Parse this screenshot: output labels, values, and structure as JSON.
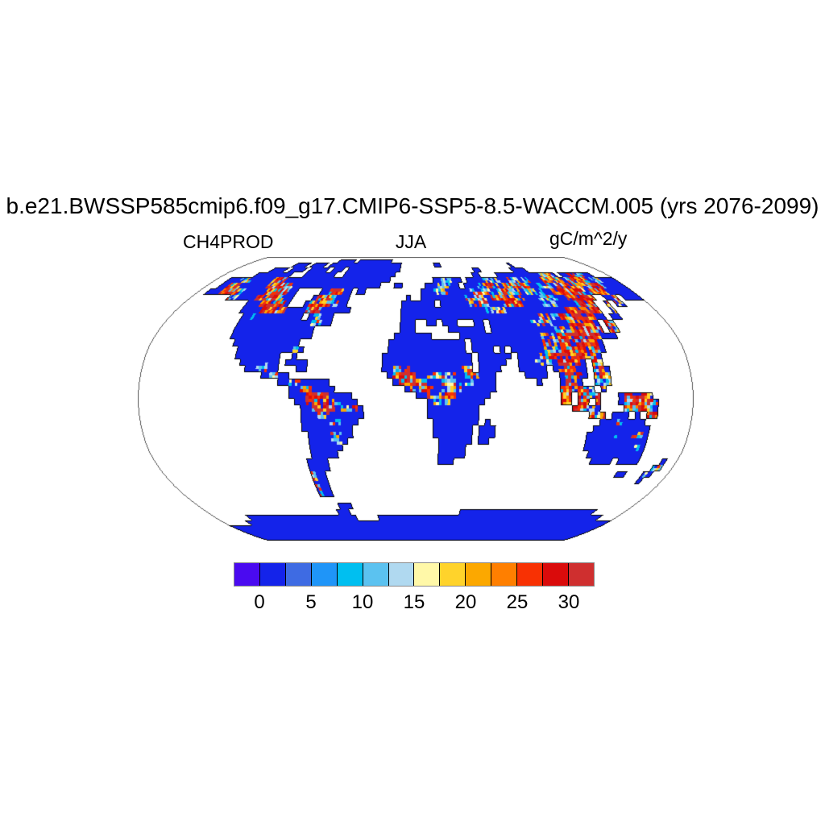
{
  "title": "b.e21.BWSSP585cmip6.f09_g17.CMIP6-SSP5-8.5-WACCM.005 (yrs 2076-2099)",
  "subtitle": {
    "left": "CH4PROD",
    "center": "JJA",
    "right": "gC/m^2/y"
  },
  "colors": {
    "background": "#ffffff",
    "ocean": "#ffffff",
    "land_base": "#1423EA",
    "coastline": "#000000",
    "map_outline": "#555555",
    "colorbar_border": "#8a8a8a",
    "text": "#000000"
  },
  "chart_data": {
    "type": "heatmap",
    "map_projection": "robinson",
    "variable": "CH4PROD",
    "season": "JJA",
    "units": "gC/m^2/y",
    "title": "b.e21.BWSSP585cmip6.f09_g17.CMIP6-SSP5-8.5-WACCM.005 (yrs 2076-2099)",
    "colorbar": {
      "colors": [
        "#4A0AF0",
        "#1423EA",
        "#3E6BE3",
        "#1F95F8",
        "#00BFF0",
        "#5BC2F0",
        "#B0D9F0",
        "#FFF8A8",
        "#FFD32B",
        "#FCA800",
        "#FF7F00",
        "#F83103",
        "#DA0B0B",
        "#CF2F2F"
      ],
      "cell_bounds": [
        -2.5,
        0,
        2.5,
        5,
        7.5,
        10,
        12.5,
        15,
        17.5,
        20,
        22.5,
        25,
        27.5,
        30,
        32.5
      ],
      "ticks": [
        {
          "label": "0",
          "boundary": 1
        },
        {
          "label": "5",
          "boundary": 3
        },
        {
          "label": "10",
          "boundary": 5
        },
        {
          "label": "15",
          "boundary": 7
        },
        {
          "label": "20",
          "boundary": 9
        },
        {
          "label": "25",
          "boundary": 11
        },
        {
          "label": "30",
          "boundary": 13
        }
      ]
    },
    "legend_note": "land cells: B = low production (solid blue), m = mild mixed hotspot, H = strong red/orange hotspot, . = water",
    "speckle_palettes": {
      "H": {
        "colors": [
          "#CF2F2F",
          "#DA0B0B",
          "#F83103",
          "#FF7F00",
          "#FCA800",
          "#FFD32B",
          "#00BFF0",
          "#5BC2F0",
          "#B0D9F0",
          "#1423EA"
        ],
        "cum": [
          0.24,
          0.44,
          0.56,
          0.63,
          0.7,
          0.77,
          0.83,
          0.88,
          0.92,
          1.0
        ]
      },
      "m": {
        "colors": [
          "#1423EA",
          "#00BFF0",
          "#5BC2F0",
          "#B0D9F0",
          "#FFF8A8",
          "#FFD32B",
          "#FCA800",
          "#F83103",
          "#CF2F2F"
        ],
        "cum": [
          0.32,
          0.47,
          0.62,
          0.72,
          0.78,
          0.84,
          0.89,
          0.95,
          1.0
        ]
      }
    },
    "grid": {
      "cols": 96,
      "rows": 48,
      "lon0": -180,
      "lat0": 90,
      "dlon": 3.75,
      "dlat": 3.75,
      "rows_data": [
        "96.",
        "25. 5B 1. 10B 55.",
        "14. 4B 1. 4B 1. 6B 14B 9. 2B 19. 1B 21.",
        "10. 4B 1. 4B 1. 5B 1. 3B 1. 14B 19. 2B 8. 4B 19.",
        "8. 9B 3. 8B 2. 13B 19. 2B 4. 11B 3H 1B 1. 2B 2H 2m 2B 4.",
        "3. 3B 3m 3B 2B 3H 14B 11B 10. 2B 3m 2B 1. 4B 4m 2B 5m 3B 5H 1B 5H 1B 2m 4B",
        "3. 2B 3H 4B 2B 4H 2m 13B 7B 3. 2B 5. 3B 3m 2B 1. 3B 2m 2H 1m 1B 6H 2B 3m 1B 7H 1m 3H 5B",
        "2. 3B 4H 1m 2B 3B 5H 2B 5. 2B 3H 2B 1. 2B 12. 3B 3m 2B 2B 1B 5m 1B 5H 1B 4m 2B 7H 1m 4H 2B 4B",
        "8. 2m 2B 2B 6H 2B 4. 1B 4H 3B 12. 1B 2. 7B 2B 5m 1B 7H 3B 4m 2B 6H 2. 2B 1H 1. 4B",
        "13. 3B 5H 1B 3. 1B 4H 2m 2B 11. 3B 4B 1. 6B 4m 3B 4H 4B 3m 4B 4H 2. 1m 1. 2m 5.",
        "13. 4B 5H 4B 3H 6B 10. 16B 1B 4m 12B 7H 2. 1m 8.",
        "14. 1B 2m 9B 1. 1B 2m 2B 13. 18B 9B 4m 7H 2B 1. 2B 8.",
        "14. 14B 2m 2B 13. 3B 2. 2B 1. 3B 3. 2B 1. 8B 4m 3B 5H 1B 1. 1H 1m 10.",
        "14. 15B 16. 3B 6. 1B 5B 1B 1. 12B 3m 5H 1H 1. 1H 1m 10.",
        "14. 15B 15. 7B 5. 15B 3m 8H 1B 2B 11.",
        "15. 12B 2. 14. 14B 1. 6B 7B 3m 7H 1B 14.",
        "16. 10B 1m 1B 15. 14B 1. 4B 1. 1B 1. 6B 3m 7H 1B 14.",
        "16. 8B 2. 1B 15. 16B 1. 6B 1. 4B 3H 7H 1B 15.",
        "17. 4B 1m 2B 1. 4B 13. 16B 1. 5B 2. 3B 3m 1B 4H 1B 1. 1H 1m 15.",
        "18. 2B 2m 2B 3. 2B 13. 2B 3m 9B 2m 1. 2B 2B 3. 5B 1. 1B 3H 2B 1. 1m 1H 1m 14.",
        "21. 1B 2m 2B 17. 1B 4H 2B 5m 1B 1m 1H 1m 3B 5. 4B 2. 1B 3H 1B 1. 1m 1H 1m 14.",
        "24. 2B 2m 5B 11. 1B 5H 2B 5m 1m 1B 3B 7. 1B 3. 1B 2H 1B 2. 3m 14.",
        "26. 2B 2H 4B 12. 1B 4H 1B 4m 6B 11. 2H 1m 2H 1m 1. 1H 15.",
        "26. 3B 4H 4B 11. 2B 3m 2H 6B 12. 2H 1. 2H 1m 1H 3. 1B 4H 1m 7.",
        "27. 2B 5H 1m 3B 12. 1B 3m 6B 13. 2H 1. 2H 1. 1H 3. 1B 5H 1m 6.",
        "28. 2B 4H 1B 2m 1H 1B 11. 9B 16. 3H 1m 1B 4. 1m 3H 1m 1B 6.",
        "28. 3B 2m 6B 11. 9B 19. 1H 1m 1H 1. 3B 1. 1B 1. 2H 6.",
        "28. 5B 2m 3B 13. 8B 1. 1B 19. 3B 1m 4B 8.",
        "28. 9B 14. 7B 1. 3B 17. 10B 7.",
        "29. 4B 2m 2B 14. 7B 1. 3B 16. 5B 1m 2B 2m 1B 7.",
        "29. 4B 2m 1B 16. 6B 1. 2B 17. 11B 7.",
        "29. 6B 17. 5B 21. 9B 1m 1B 7.",
        "29. 5B 18. 5B 22. 10B 7.",
        "28. 4B 20. 3B 25. 4B 1. 4B 4. 1B 2.",
        "28. 4B 60. 2m 2.",
        "28. 1m 2B 55. 2B 3. 1m 1B 3.",
        "28. 1m 2B 60. 1B 4.",
        "28. 1m 2B 65.",
        "28. 1m 2B 65.",
        "96.",
        "31. 3B 62.",
        "30. 3B 25. 31B 7.",
        "8. 26B 5. 53B 4.",
        "6. 90B",
        "96B",
        "96B",
        "96B",
        "96B"
      ]
    }
  }
}
